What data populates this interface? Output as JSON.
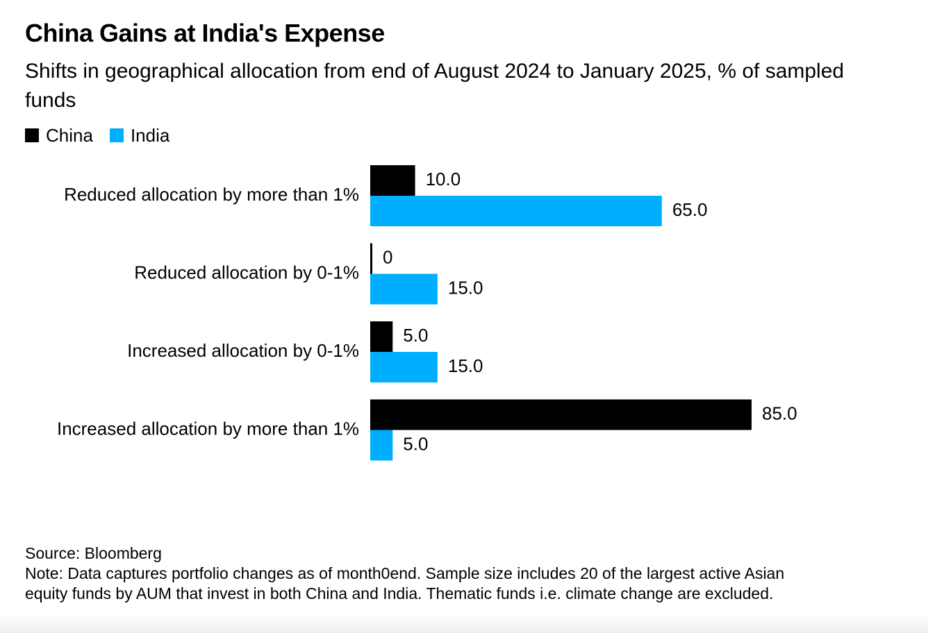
{
  "chart_data": {
    "type": "bar",
    "orientation": "horizontal",
    "title": "China Gains at India's Expense",
    "subtitle": "Shifts in geographical allocation from end of August 2024 to January 2025, % of sampled funds",
    "categories": [
      "Reduced allocation by more than 1%",
      "Reduced allocation by 0-1%",
      "Increased allocation by 0-1%",
      "Increased allocation by more than 1%"
    ],
    "series": [
      {
        "name": "China",
        "color": "#000000",
        "values": [
          10.0,
          0,
          5.0,
          85.0
        ],
        "labels": [
          "10.0",
          "0",
          "5.0",
          "85.0"
        ]
      },
      {
        "name": "India",
        "color": "#00aeff",
        "values": [
          65.0,
          15.0,
          15.0,
          5.0
        ],
        "labels": [
          "65.0",
          "15.0",
          "15.0",
          "5.0"
        ]
      }
    ],
    "xlim": [
      0,
      100
    ],
    "grid": false,
    "legend_position": "top-left",
    "source": "Source: Bloomberg",
    "note": "Note: Data captures portfolio changes as of month0end. Sample size includes 20 of the largest active Asian equity funds by AUM that invest in both China and India. Thematic funds i.e. climate change are excluded.",
    "note_lines": [
      "Note: Data captures portfolio changes as of month0end. Sample size includes 20 of the largest active Asian",
      "equity funds by AUM that invest in both China and India. Thematic funds i.e. climate change are excluded."
    ]
  }
}
